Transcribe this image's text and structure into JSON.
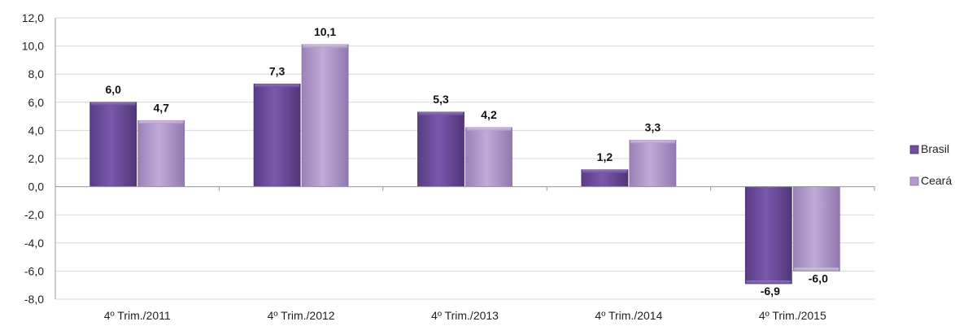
{
  "chart_data": {
    "type": "bar",
    "categories": [
      "4º Trim./2011",
      "4º Trim./2012",
      "4º Trim./2013",
      "4º Trim./2014",
      "4º Trim./2015"
    ],
    "series": [
      {
        "name": "Brasil",
        "values": [
          6.0,
          7.3,
          5.3,
          1.2,
          -6.9
        ],
        "labels": [
          "6,0",
          "7,3",
          "5,3",
          "1,2",
          "-6,9"
        ],
        "color": "#6f4f9f"
      },
      {
        "name": "Ceará",
        "values": [
          4.7,
          10.1,
          4.2,
          3.3,
          -6.0
        ],
        "labels": [
          "4,7",
          "10,1",
          "4,2",
          "3,3",
          "-6,0"
        ],
        "color": "#b29acb"
      }
    ],
    "ylim": [
      -8,
      12
    ],
    "y_ticks": [
      12,
      10,
      8,
      6,
      4,
      2,
      0,
      -2,
      -4,
      -6,
      -8
    ],
    "y_tick_labels": [
      "12,0",
      "10,0",
      "8,0",
      "6,0",
      "4,0",
      "2,0",
      "0,0",
      "-2,0",
      "-4,0",
      "-6,0",
      "-8,0"
    ],
    "grid": true,
    "legend_position": "right"
  }
}
